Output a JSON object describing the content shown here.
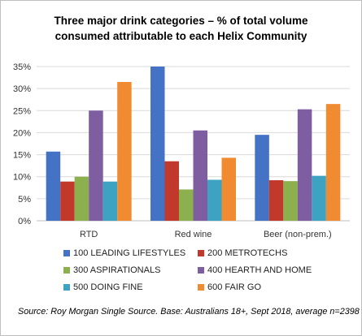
{
  "title_lines": [
    "Three major drink categories – % of total volume",
    "consumed attributable to each Helix Community"
  ],
  "source": "Source: Roy Morgan Single Source. Base: Australians 18+, Sept 2018, average n=2398",
  "chart_data": {
    "type": "bar",
    "categories": [
      "RTD",
      "Red wine",
      "Beer (non-prem.)"
    ],
    "series": [
      {
        "name": "100 LEADING LIFESTYLES",
        "color": "#4472c4",
        "values": [
          15.7,
          35.0,
          19.5
        ]
      },
      {
        "name": "200 METROTECHS",
        "color": "#c0392b",
        "values": [
          8.9,
          13.5,
          9.2
        ]
      },
      {
        "name": "300 ASPIRATIONALS",
        "color": "#8db04f",
        "values": [
          10.0,
          7.1,
          9.0
        ]
      },
      {
        "name": "400 HEARTH AND HOME",
        "color": "#7e5ea0",
        "values": [
          25.0,
          20.5,
          25.3
        ]
      },
      {
        "name": "500 DOING FINE",
        "color": "#3ea2c3",
        "values": [
          8.9,
          9.3,
          10.2
        ]
      },
      {
        "name": "600 FAIR GO",
        "color": "#f08b32",
        "values": [
          31.5,
          14.3,
          26.5
        ]
      }
    ],
    "yticks": [
      "0%",
      "5%",
      "10%",
      "15%",
      "20%",
      "25%",
      "30%",
      "35%"
    ],
    "ylim": [
      0,
      35
    ],
    "grid": true,
    "legend_position": "bottom"
  }
}
